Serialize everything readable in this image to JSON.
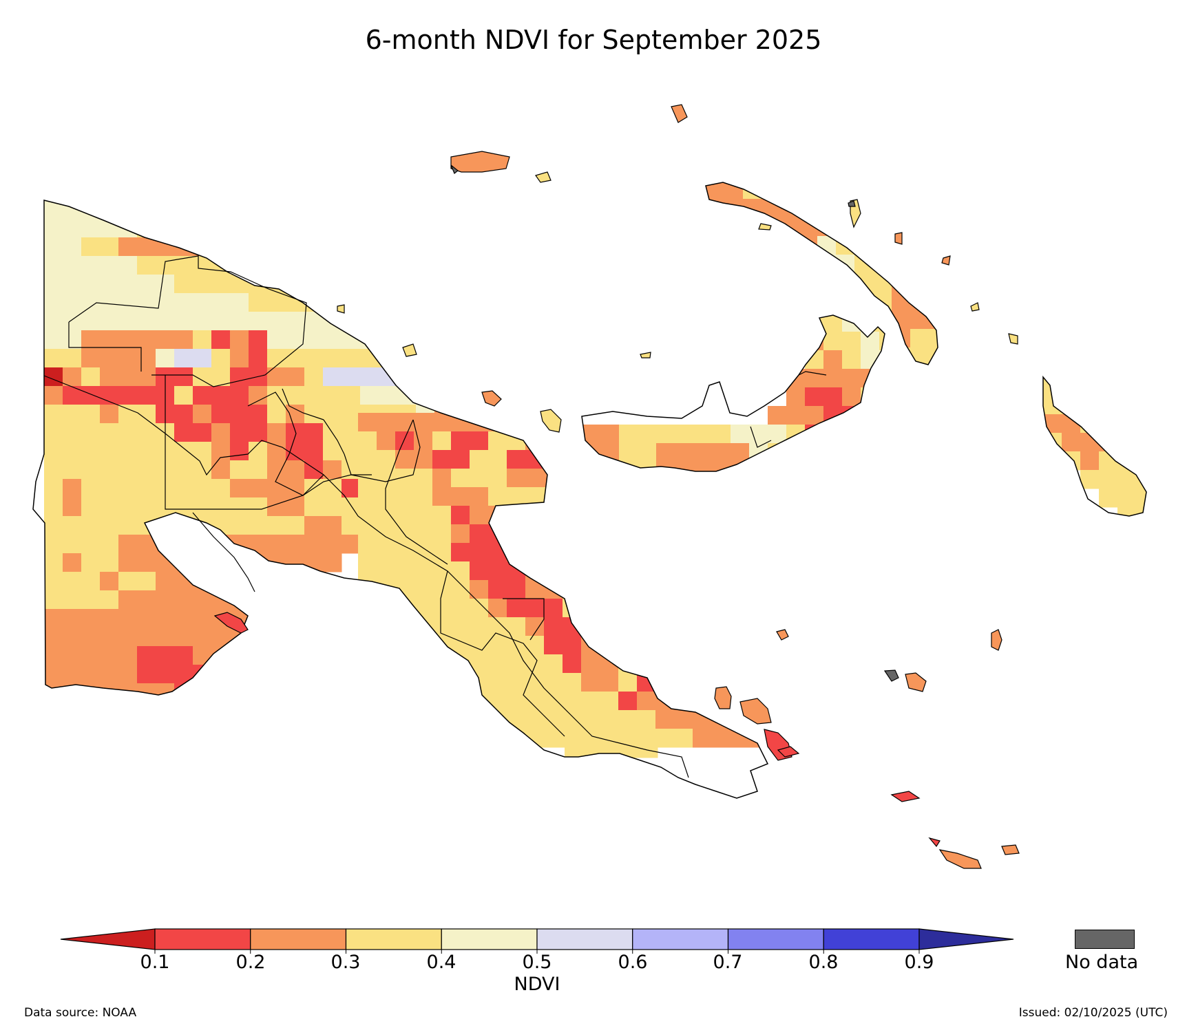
{
  "title": "6-month NDVI for September 2025",
  "legend": {
    "label": "NDVI",
    "ticks": [
      "0.1",
      "0.2",
      "0.3",
      "0.4",
      "0.5",
      "0.6",
      "0.7",
      "0.8",
      "0.9"
    ],
    "colors": {
      "under": "#cc1f1f",
      "bins": [
        "#f24646",
        "#f7965a",
        "#fae182",
        "#f5f2c8",
        "#dcdcf0",
        "#b4b4f8",
        "#8282f0",
        "#4141d7"
      ],
      "over": "#2d2d9b"
    },
    "no_data_label": "No data",
    "no_data_color": "#666666"
  },
  "footer": {
    "source": "Data source: NOAA",
    "issued": "Issued: 02/10/2025 (UTC)"
  },
  "map": {
    "region": "Papua New Guinea",
    "classes": {
      "under": "#cc1f1f",
      "r": "#f24646",
      "o": "#f7965a",
      "y": "#fae182",
      "c": "#f5f2c8",
      "l": "#dcdcf0",
      "g": "#666666"
    }
  }
}
